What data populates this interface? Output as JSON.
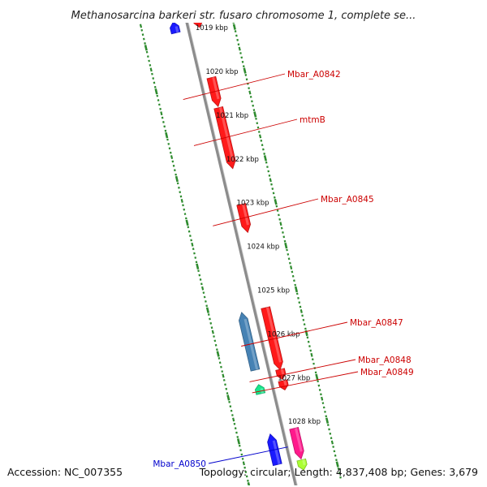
{
  "title": "Methanosarcina barkeri str. fusaro chromosome 1, complete se...",
  "footer": {
    "accession": "Accession: NC_007355",
    "summary": "Topology: circular; Length: 4,837,408 bp; Genes: 3,679"
  },
  "colors": {
    "backbone": "#8c8c8c",
    "ticks": "#2e8b2e",
    "gene_red": "#ff1a1a",
    "gene_blue": "#1a1aff",
    "gene_steel": "#4682b4",
    "gene_pink": "#ff1a8c",
    "gene_mint": "#19e68c",
    "gene_lime": "#aaff33",
    "label_red": "#cc0000",
    "label_blue": "#0000cc"
  },
  "scale": {
    "start_kbp": 1019,
    "end_kbp": 1028,
    "labels": [
      "1019 kbp",
      "1020 kbp",
      "1021 kbp",
      "1022 kbp",
      "1023 kbp",
      "1024 kbp",
      "1025 kbp",
      "1026 kbp",
      "1027 kbp",
      "1028 kbp"
    ]
  },
  "genes": [
    {
      "name": "",
      "strand": "plus",
      "color": "gene_red",
      "start_kbp": 1018.58,
      "end_kbp": 1018.83
    },
    {
      "name": "",
      "strand": "minus",
      "color": "gene_blue",
      "start_kbp": 1018.58,
      "end_kbp": 1018.83
    },
    {
      "name": "Mbar_A0842",
      "strand": "plus",
      "color": "gene_red",
      "start_kbp": 1019.98,
      "end_kbp": 1020.64
    },
    {
      "name": "mtmB",
      "strand": "plus",
      "color": "gene_red",
      "start_kbp": 1020.67,
      "end_kbp": 1022.06
    },
    {
      "name": "Mbar_A0845",
      "strand": "plus",
      "color": "gene_red",
      "start_kbp": 1022.88,
      "end_kbp": 1023.52
    },
    {
      "name": "Mbar_A0847",
      "strand": "plus",
      "color": "gene_red",
      "start_kbp": 1025.24,
      "end_kbp": 1026.66
    },
    {
      "name": "",
      "strand": "minus",
      "color": "gene_steel",
      "start_kbp": 1025.22,
      "end_kbp": 1026.54
    },
    {
      "name": "Mbar_A0848",
      "strand": "plus",
      "color": "gene_red",
      "start_kbp": 1026.65,
      "end_kbp": 1026.88
    },
    {
      "name": "Mbar_A0849",
      "strand": "plus",
      "color": "gene_red",
      "start_kbp": 1026.91,
      "end_kbp": 1027.12
    },
    {
      "name": "",
      "strand": "minus",
      "color": "gene_mint",
      "start_kbp": 1026.87,
      "end_kbp": 1027.08
    },
    {
      "name": "Mbar_A0850",
      "strand": "plus",
      "color": "gene_pink",
      "start_kbp": 1028.0,
      "end_kbp": 1028.7
    },
    {
      "name": "",
      "strand": "minus",
      "color": "gene_blue",
      "start_kbp": 1028.0,
      "end_kbp": 1028.7
    },
    {
      "name": "",
      "strand": "plus",
      "color": "gene_lime",
      "start_kbp": 1028.72,
      "end_kbp": 1028.95
    }
  ]
}
